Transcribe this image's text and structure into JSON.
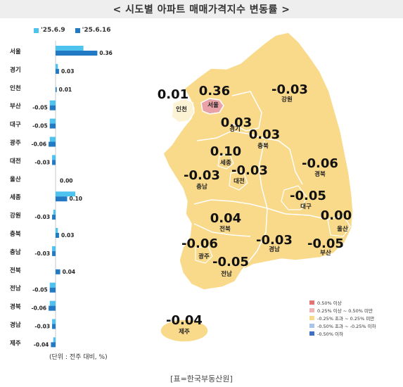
{
  "title": "< 시도별 아파트 매매가격지수 변동률 >",
  "weeks": [
    {
      "label": "'25.6.9",
      "color": "#4fc3ef"
    },
    {
      "label": "'25.6.16",
      "color": "#2279c4"
    }
  ],
  "chart_data": {
    "type": "bar",
    "orientation": "horizontal",
    "categories": [
      "서울",
      "경기",
      "인천",
      "부산",
      "대구",
      "광주",
      "대전",
      "울산",
      "세종",
      "강원",
      "충북",
      "충남",
      "전북",
      "전남",
      "경북",
      "경남",
      "제주"
    ],
    "series": [
      {
        "name": "'25.6.9",
        "values": [
          0.24,
          0.02,
          0.0,
          -0.05,
          -0.05,
          -0.05,
          -0.03,
          0.0,
          0.17,
          -0.02,
          0.02,
          -0.03,
          0.0,
          -0.05,
          -0.05,
          -0.03,
          -0.02
        ]
      },
      {
        "name": "'25.6.16",
        "values": [
          0.36,
          0.03,
          0.01,
          -0.05,
          -0.05,
          -0.06,
          -0.03,
          0.0,
          0.1,
          -0.03,
          0.03,
          -0.03,
          0.04,
          -0.05,
          -0.06,
          -0.03,
          -0.04
        ]
      }
    ],
    "value_labels": [
      "0.36",
      "0.03",
      "0.01",
      "-0.05",
      "-0.05",
      "-0.06",
      "-0.03",
      "0.00",
      "0.10",
      "-0.03",
      "0.03",
      "-0.03",
      "0.04",
      "-0.05",
      "-0.06",
      "-0.03",
      "-0.04"
    ],
    "xlim": [
      -0.1,
      0.45
    ]
  },
  "unit_note": "(단위 : 전주 대비, %)",
  "map": {
    "regions": [
      {
        "name": "서울",
        "value": "0.36",
        "color": "#e9a3a8"
      },
      {
        "name": "인천",
        "value": "0.01",
        "color": "#fbf3d4"
      },
      {
        "name": "경기",
        "value": "0.03",
        "color": "#f9d98a"
      },
      {
        "name": "강원",
        "value": "-0.03",
        "color": "#f9d98a"
      },
      {
        "name": "충북",
        "value": "0.03",
        "color": "#f9d98a"
      },
      {
        "name": "세종",
        "value": "0.10",
        "color": "#f9d98a"
      },
      {
        "name": "대전",
        "value": "-0.03",
        "color": "#f9d98a"
      },
      {
        "name": "충남",
        "value": "-0.03",
        "color": "#f9d98a"
      },
      {
        "name": "경북",
        "value": "-0.06",
        "color": "#f9d98a"
      },
      {
        "name": "대구",
        "value": "-0.05",
        "color": "#f9d98a"
      },
      {
        "name": "전북",
        "value": "0.04",
        "color": "#f9d98a"
      },
      {
        "name": "울산",
        "value": "0.00",
        "color": "#f9d98a"
      },
      {
        "name": "경남",
        "value": "-0.03",
        "color": "#f9d98a"
      },
      {
        "name": "부산",
        "value": "-0.05",
        "color": "#f9d98a"
      },
      {
        "name": "광주",
        "value": "-0.06",
        "color": "#f9d98a"
      },
      {
        "name": "전남",
        "value": "-0.05",
        "color": "#f9d98a"
      },
      {
        "name": "제주",
        "value": "-0.04",
        "color": "#f9d98a"
      }
    ]
  },
  "color_legend": [
    {
      "label": "0.50% 이상",
      "color": "#e57373"
    },
    {
      "label": "0.25% 이상 ~ 0.50% 미만",
      "color": "#f1b4b4"
    },
    {
      "label": "-0.25% 초과 ~ 0.25% 미만",
      "color": "#f9d98a"
    },
    {
      "label": "-0.50% 초과 ~ -0.25% 이하",
      "color": "#a9c4e6"
    },
    {
      "label": "-0.50% 이하",
      "color": "#3d6fc4"
    }
  ],
  "source": "[표=한국부동산원]"
}
